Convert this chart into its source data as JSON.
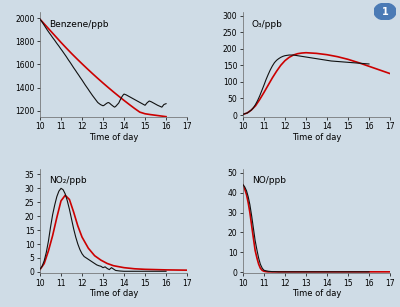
{
  "fig_bg_color": "#cfdce6",
  "axes_bg_color": "#cfdce6",
  "obs_color": "#111111",
  "sim_color": "#cc0000",
  "obs_lw": 0.8,
  "sim_lw": 1.2,
  "xlabel": "Time of day",
  "tick_fontsize": 5.5,
  "label_fontsize": 6.0,
  "title_fontsize": 6.5,
  "xlim": [
    10,
    17
  ],
  "xticks": [
    10,
    11,
    12,
    13,
    14,
    15,
    16,
    17
  ],
  "benzene_title": "Benzene/ppb",
  "benzene_ylim": [
    1150,
    2050
  ],
  "benzene_yticks": [
    1200,
    1400,
    1600,
    1800,
    2000
  ],
  "benzene_obs_x": [
    10.0,
    10.05,
    10.1,
    10.15,
    10.2,
    10.25,
    10.3,
    10.35,
    10.4,
    10.45,
    10.5,
    10.55,
    10.6,
    10.65,
    10.7,
    10.75,
    10.8,
    10.85,
    10.9,
    10.95,
    11.0,
    11.05,
    11.1,
    11.15,
    11.2,
    11.25,
    11.3,
    11.35,
    11.4,
    11.45,
    11.5,
    11.55,
    11.6,
    11.65,
    11.7,
    11.75,
    11.8,
    11.85,
    11.9,
    11.95,
    12.0,
    12.05,
    12.1,
    12.15,
    12.2,
    12.25,
    12.3,
    12.35,
    12.4,
    12.45,
    12.5,
    12.55,
    12.6,
    12.65,
    12.7,
    12.75,
    12.8,
    12.85,
    12.9,
    12.95,
    13.0,
    13.05,
    13.1,
    13.15,
    13.2,
    13.25,
    13.3,
    13.35,
    13.4,
    13.45,
    13.5,
    13.55,
    13.6,
    13.65,
    13.7,
    13.75,
    13.8,
    13.85,
    13.9,
    13.95,
    14.0,
    14.1,
    14.2,
    14.3,
    14.4,
    14.5,
    14.6,
    14.7,
    14.8,
    14.9,
    15.0,
    15.1,
    15.2,
    15.3,
    15.4,
    15.5,
    15.6,
    15.7,
    15.8,
    15.9,
    16.0
  ],
  "benzene_obs_y": [
    1990,
    1978,
    1966,
    1952,
    1938,
    1924,
    1910,
    1896,
    1883,
    1870,
    1858,
    1845,
    1832,
    1820,
    1808,
    1795,
    1782,
    1770,
    1758,
    1745,
    1732,
    1720,
    1707,
    1694,
    1681,
    1668,
    1654,
    1640,
    1627,
    1614,
    1600,
    1586,
    1572,
    1559,
    1546,
    1532,
    1519,
    1506,
    1492,
    1479,
    1466,
    1452,
    1438,
    1424,
    1411,
    1398,
    1385,
    1371,
    1358,
    1345,
    1332,
    1320,
    1308,
    1296,
    1284,
    1272,
    1265,
    1258,
    1252,
    1248,
    1244,
    1248,
    1255,
    1262,
    1268,
    1272,
    1268,
    1260,
    1252,
    1245,
    1238,
    1232,
    1238,
    1248,
    1258,
    1268,
    1288,
    1305,
    1322,
    1335,
    1345,
    1338,
    1328,
    1318,
    1308,
    1298,
    1288,
    1278,
    1268,
    1258,
    1248,
    1270,
    1285,
    1278,
    1268,
    1258,
    1248,
    1240,
    1232,
    1255,
    1262
  ],
  "benzene_sim_x": [
    10.0,
    10.25,
    10.5,
    10.75,
    11.0,
    11.25,
    11.5,
    11.75,
    12.0,
    12.25,
    12.5,
    12.75,
    13.0,
    13.25,
    13.5,
    13.75,
    14.0,
    14.25,
    14.5,
    14.75,
    15.0,
    15.25,
    15.5,
    15.75,
    16.0
  ],
  "benzene_sim_y": [
    1990,
    1940,
    1890,
    1840,
    1790,
    1742,
    1695,
    1650,
    1606,
    1563,
    1521,
    1480,
    1440,
    1401,
    1363,
    1326,
    1290,
    1255,
    1221,
    1189,
    1175,
    1168,
    1162,
    1156,
    1150
  ],
  "o3_title": "O₃/ppb",
  "o3_ylim": [
    -5,
    310
  ],
  "o3_yticks": [
    0,
    50,
    100,
    150,
    200,
    250,
    300
  ],
  "o3_obs_x": [
    10.0,
    10.1,
    10.2,
    10.3,
    10.4,
    10.5,
    10.6,
    10.7,
    10.8,
    10.9,
    11.0,
    11.1,
    11.2,
    11.3,
    11.4,
    11.5,
    11.6,
    11.7,
    11.8,
    11.9,
    12.0,
    12.1,
    12.2,
    12.3,
    12.4,
    12.5,
    12.6,
    12.7,
    12.8,
    12.9,
    13.0,
    13.2,
    13.4,
    13.6,
    13.8,
    14.0,
    14.2,
    14.4,
    14.6,
    14.8,
    15.0,
    15.2,
    15.4,
    15.6,
    15.8,
    16.0
  ],
  "o3_obs_y": [
    2,
    4,
    6,
    10,
    15,
    22,
    32,
    44,
    58,
    74,
    90,
    107,
    122,
    136,
    148,
    158,
    165,
    170,
    174,
    177,
    179,
    180,
    181,
    181,
    181,
    180,
    179,
    178,
    177,
    176,
    175,
    173,
    171,
    169,
    167,
    165,
    163,
    162,
    161,
    160,
    159,
    158,
    157,
    156,
    155,
    154
  ],
  "o3_sim_x": [
    10.0,
    10.2,
    10.4,
    10.6,
    10.8,
    11.0,
    11.2,
    11.4,
    11.6,
    11.8,
    12.0,
    12.2,
    12.4,
    12.6,
    12.8,
    13.0,
    13.5,
    14.0,
    14.5,
    15.0,
    15.5,
    16.0,
    16.5,
    17.0
  ],
  "o3_sim_y": [
    2,
    6,
    15,
    28,
    47,
    68,
    90,
    112,
    132,
    150,
    164,
    174,
    181,
    185,
    187,
    188,
    186,
    182,
    176,
    168,
    158,
    147,
    136,
    125
  ],
  "no2_title": "NO₂/ppb",
  "no2_ylim": [
    -0.5,
    37
  ],
  "no2_yticks": [
    0,
    5,
    10,
    15,
    20,
    25,
    30,
    35
  ],
  "no2_obs_x": [
    10.0,
    10.1,
    10.2,
    10.3,
    10.4,
    10.5,
    10.6,
    10.7,
    10.8,
    10.9,
    11.0,
    11.1,
    11.2,
    11.3,
    11.4,
    11.5,
    11.6,
    11.7,
    11.8,
    11.9,
    12.0,
    12.1,
    12.2,
    12.3,
    12.4,
    12.5,
    12.6,
    12.7,
    12.8,
    12.9,
    13.0,
    13.1,
    13.2,
    13.3,
    13.4,
    13.5,
    13.6,
    13.8,
    14.0,
    14.5,
    15.0,
    15.5,
    16.0
  ],
  "no2_obs_y": [
    1.0,
    2.0,
    4.0,
    7.0,
    11.0,
    16.0,
    20.5,
    24.0,
    27.0,
    29.0,
    30.0,
    29.5,
    28.0,
    25.5,
    22.5,
    19.0,
    15.5,
    12.5,
    10.0,
    8.0,
    6.5,
    5.5,
    5.0,
    4.5,
    4.0,
    3.5,
    3.0,
    2.5,
    2.2,
    2.0,
    1.5,
    1.8,
    1.2,
    0.8,
    1.5,
    1.0,
    0.5,
    0.3,
    0.2,
    0.2,
    0.2,
    0.2,
    0.2
  ],
  "no2_sim_x": [
    10.0,
    10.2,
    10.4,
    10.6,
    10.8,
    11.0,
    11.2,
    11.4,
    11.6,
    11.8,
    12.0,
    12.3,
    12.6,
    12.9,
    13.2,
    13.5,
    14.0,
    14.5,
    15.0,
    15.5,
    16.0,
    16.5,
    17.0
  ],
  "no2_sim_y": [
    0.8,
    3.0,
    7.5,
    13.0,
    19.5,
    25.5,
    27.5,
    26.0,
    21.5,
    16.5,
    12.5,
    8.5,
    5.8,
    4.2,
    3.0,
    2.2,
    1.5,
    1.1,
    0.9,
    0.8,
    0.7,
    0.65,
    0.6
  ],
  "no_title": "NO/ppb",
  "no_ylim": [
    -0.5,
    52
  ],
  "no_yticks": [
    0,
    10,
    20,
    30,
    40,
    50
  ],
  "no_obs_x": [
    10.0,
    10.08,
    10.17,
    10.25,
    10.33,
    10.42,
    10.5,
    10.58,
    10.67,
    10.75,
    10.83,
    10.92,
    11.0,
    11.1,
    11.2,
    11.3,
    11.4,
    11.5,
    11.6,
    11.7,
    11.8,
    11.9,
    12.0,
    12.5,
    13.0,
    13.5,
    14.0,
    15.0,
    16.0
  ],
  "no_obs_y": [
    44,
    43,
    41,
    38,
    34,
    28,
    22,
    16,
    11,
    7,
    4,
    2,
    1.0,
    0.7,
    0.5,
    0.4,
    0.3,
    0.3,
    0.25,
    0.2,
    0.2,
    0.2,
    0.2,
    0.2,
    0.2,
    0.2,
    0.2,
    0.2,
    0.2
  ],
  "no_sim_x": [
    10.0,
    10.08,
    10.17,
    10.25,
    10.33,
    10.42,
    10.5,
    10.58,
    10.67,
    10.75,
    10.83,
    10.92,
    11.0,
    11.1,
    11.2,
    11.3,
    11.5,
    12.0,
    13.0,
    14.0,
    15.0,
    16.0,
    17.0
  ],
  "no_sim_y": [
    44,
    42,
    39,
    35,
    30,
    23,
    17,
    11,
    7,
    4,
    2,
    0.9,
    0.5,
    0.3,
    0.2,
    0.2,
    0.2,
    0.2,
    0.2,
    0.2,
    0.2,
    0.2,
    0.2
  ]
}
